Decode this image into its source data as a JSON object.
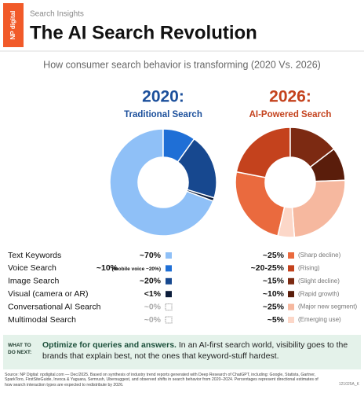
{
  "header": {
    "brand": "NP digital",
    "kicker": "Search Insights",
    "title": "The AI Search Revolution",
    "subtitle": "How consumer search behavior is transforming (2020 Vs. 2026)"
  },
  "chart_data": [
    {
      "type": "pie",
      "donut": true,
      "title": "2020:",
      "subtitle": "Traditional Search",
      "title_color": "#1b4f9b",
      "categories": [
        "Text Keywords",
        "Voice Search",
        "Image Search",
        "Visual (camera or AR)",
        "Conversational AI Search",
        "Multimodal Search"
      ],
      "values": [
        70,
        10,
        20,
        1,
        0,
        0
      ],
      "value_labels": [
        "~70%",
        "~10%",
        "~20%",
        "<1%",
        "~0%",
        "~0%"
      ],
      "voice_note": "(mobile voice ~20%)",
      "colors": [
        "#8fc0f7",
        "#1f6fd6",
        "#17488f",
        "#0c1d3b",
        "#ffffff",
        "#ffffff"
      ]
    },
    {
      "type": "pie",
      "donut": true,
      "title": "2026:",
      "subtitle": "AI-Powered Search",
      "title_color": "#c4421d",
      "values": [
        25,
        22.5,
        15,
        10,
        25,
        5
      ],
      "value_labels": [
        "~25%",
        "~20-25%",
        "~15%",
        "~10%",
        "~25%",
        "~5%"
      ],
      "notes": [
        "(Sharp decline)",
        "(Rising)",
        "(Slight decline)",
        "(Rapid growth)",
        "(Major new segment)",
        "(Emerging use)"
      ],
      "colors": [
        "#ea6a3e",
        "#c4421d",
        "#7c2a12",
        "#5a1d0b",
        "#f6b89f",
        "#fcd7c8"
      ]
    }
  ],
  "callout": {
    "badge": "WHAT TO DO NEXT:",
    "lead": "Optimize for queries and answers.",
    "text": "In an AI-first search world, visibility goes to the brands that explain best, not the ones that keyword-stuff hardest."
  },
  "footer": {
    "source": "Source: NP Digital: npdigital.com — Dec/2025. Based on synthesis of industry trend reports generated with Deep Research of ChatGPT, including: Google, Statista, Gartner, SparkToro, FirstSiteGuide, Invoca & Yaguara, Semrush, Ubersuggest, and observed shifts in search behavior from 2020–2024. Percentages represent directional estimates of how search interaction types are expected to redistribute by 2026.",
    "code": "121025A_K"
  }
}
